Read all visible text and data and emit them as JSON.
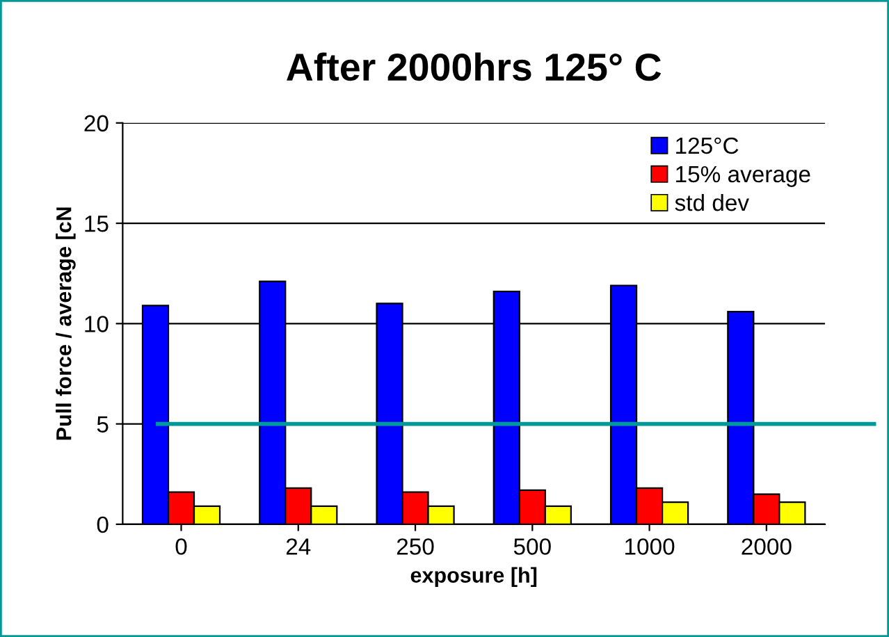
{
  "chart_data": {
    "type": "bar",
    "title": "After 2000hrs 125° C",
    "xlabel": "exposure [h]",
    "ylabel": "Pull force / average [cN",
    "categories": [
      "0",
      "24",
      "250",
      "500",
      "1000",
      "2000"
    ],
    "series": [
      {
        "name": "125°C",
        "color": "#0000ff",
        "values": [
          10.9,
          12.1,
          11.0,
          11.6,
          11.9,
          10.6
        ]
      },
      {
        "name": "15% average",
        "color": "#ff0000",
        "values": [
          1.6,
          1.8,
          1.6,
          1.7,
          1.8,
          1.5
        ]
      },
      {
        "name": "std dev",
        "color": "#ffff00",
        "values": [
          0.9,
          0.9,
          0.9,
          0.9,
          1.1,
          1.1
        ]
      }
    ],
    "ylim": [
      0,
      20
    ],
    "yticks": [
      0,
      5,
      10,
      15,
      20
    ],
    "grid": "y",
    "legend": "top right",
    "ref_lines": [
      {
        "axis": "y",
        "value": 5,
        "color": "#009999"
      }
    ]
  }
}
